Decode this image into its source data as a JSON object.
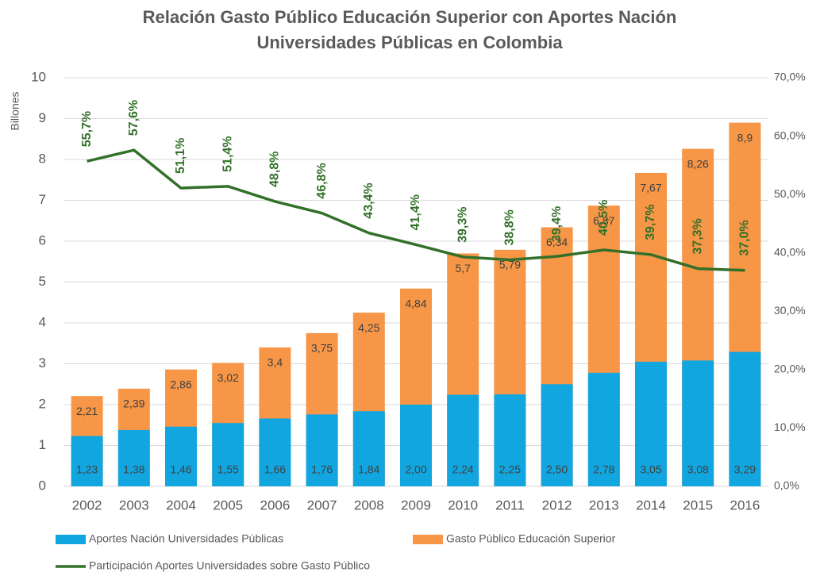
{
  "chart_data": {
    "type": "bar-line",
    "title": "Relación Gasto Público Educación Superior con Aportes Nación Universidades Públicas en Colombia",
    "y_label": "Billones",
    "categories": [
      "2002",
      "2003",
      "2004",
      "2005",
      "2006",
      "2007",
      "2008",
      "2009",
      "2010",
      "2011",
      "2012",
      "2013",
      "2014",
      "2015",
      "2016"
    ],
    "series": [
      {
        "name": "Gasto Público Educación Superior",
        "color": "#f79646",
        "values": [
          2.21,
          2.39,
          2.86,
          3.02,
          3.4,
          3.75,
          4.25,
          4.84,
          5.7,
          5.79,
          6.34,
          6.87,
          7.67,
          8.26,
          8.9
        ],
        "value_labels": [
          "2,21",
          "2,39",
          "2,86",
          "3,02",
          "3,4",
          "3,75",
          "4,25",
          "4,84",
          "5,7",
          "5,79",
          "6,34",
          "6,87",
          "7,67",
          "8,26",
          "8,9"
        ]
      },
      {
        "name": "Aportes Nación Universidades Públicas",
        "color": "#12a6e0",
        "values": [
          1.23,
          1.38,
          1.46,
          1.55,
          1.66,
          1.76,
          1.84,
          2.0,
          2.24,
          2.25,
          2.5,
          2.78,
          3.05,
          3.08,
          3.29
        ],
        "value_labels": [
          "1,23",
          "1,38",
          "1,46",
          "1,55",
          "1,66",
          "1,76",
          "1,84",
          "2,00",
          "2,24",
          "2,25",
          "2,50",
          "2,78",
          "3,05",
          "3,08",
          "3,29"
        ]
      },
      {
        "name": "Participación Aportes Universidades sobre Gasto Público",
        "color": "#33702a",
        "axis": "y2",
        "values": [
          55.7,
          57.6,
          51.1,
          51.4,
          48.8,
          46.8,
          43.4,
          41.4,
          39.3,
          38.8,
          39.4,
          40.5,
          39.7,
          37.3,
          37.0
        ],
        "value_labels": [
          "55,7%",
          "57,6%",
          "51,1%",
          "51,4%",
          "48,8%",
          "46,8%",
          "43,4%",
          "41,4%",
          "39,3%",
          "38,8%",
          "39,4%",
          "40,5%",
          "39,7%",
          "37,3%",
          "37,0%"
        ]
      }
    ],
    "ylim": [
      0,
      10
    ],
    "yticks": [
      0,
      1,
      2,
      3,
      4,
      5,
      6,
      7,
      8,
      9,
      10
    ],
    "y2lim": [
      0,
      70
    ],
    "y2ticks": [
      {
        "value": 0,
        "label": "0,0%"
      },
      {
        "value": 10,
        "label": "10,0%"
      },
      {
        "value": 20,
        "label": "20,0%"
      },
      {
        "value": 30,
        "label": "30,0%"
      },
      {
        "value": 40,
        "label": "40,0%"
      },
      {
        "value": 50,
        "label": "50,0%"
      },
      {
        "value": 60,
        "label": "60,0%"
      },
      {
        "value": 70,
        "label": "70,0%"
      }
    ],
    "grid": true
  }
}
